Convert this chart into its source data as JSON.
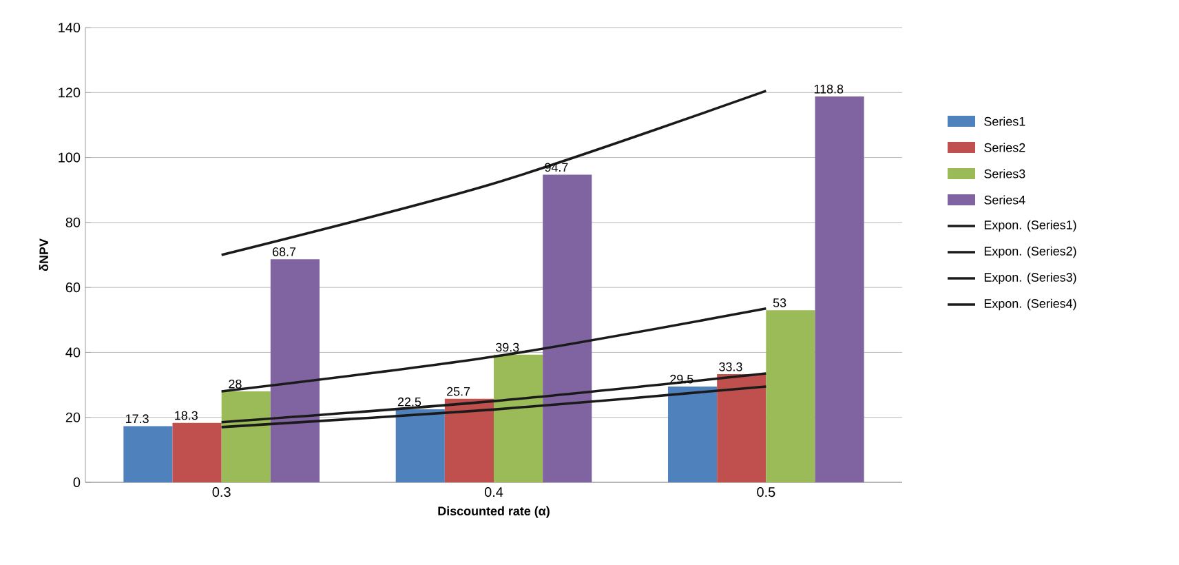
{
  "chart_data": {
    "type": "bar",
    "xlabel": "Discounted rate (α)",
    "ylabel": "δNPV",
    "categories": [
      "0.3",
      "0.4",
      "0.5"
    ],
    "series": [
      {
        "name": "Series1",
        "color": "#4f81bd",
        "values": [
          17.3,
          22.5,
          29.5
        ],
        "value_labels": [
          "17.3",
          "22.5",
          "29.5"
        ]
      },
      {
        "name": "Series2",
        "color": "#c0504d",
        "values": [
          18.3,
          25.7,
          33.3
        ],
        "value_labels": [
          "18.3",
          "25.7",
          "33.3"
        ]
      },
      {
        "name": "Series3",
        "color": "#9bbb59",
        "values": [
          28,
          39.3,
          53
        ],
        "value_labels": [
          "28",
          "39.3",
          "53"
        ]
      },
      {
        "name": "Series4",
        "color": "#8064a2",
        "values": [
          68.7,
          94.7,
          118.8
        ],
        "value_labels": [
          "68.7",
          "94.7",
          "118.8"
        ]
      },
      {
        "name": "Expon. (Series1)",
        "type": "line",
        "color": "#1a1a1a",
        "values": [
          17,
          22.4,
          29.5
        ]
      },
      {
        "name": "Expon. (Series2)",
        "type": "line",
        "color": "#1a1a1a",
        "values": [
          18.5,
          25,
          33.5
        ]
      },
      {
        "name": "Expon. (Series3)",
        "type": "line",
        "color": "#1a1a1a",
        "values": [
          28,
          38.7,
          53.5
        ]
      },
      {
        "name": "Expon. (Series4)",
        "type": "line",
        "color": "#1a1a1a",
        "values": [
          70,
          92,
          120.5
        ]
      }
    ],
    "ylim": [
      0,
      140
    ],
    "yticks": [
      0,
      20,
      40,
      60,
      80,
      100,
      120,
      140
    ],
    "grid": "y",
    "legend": "right",
    "marker": "none",
    "line_style": "solid"
  }
}
